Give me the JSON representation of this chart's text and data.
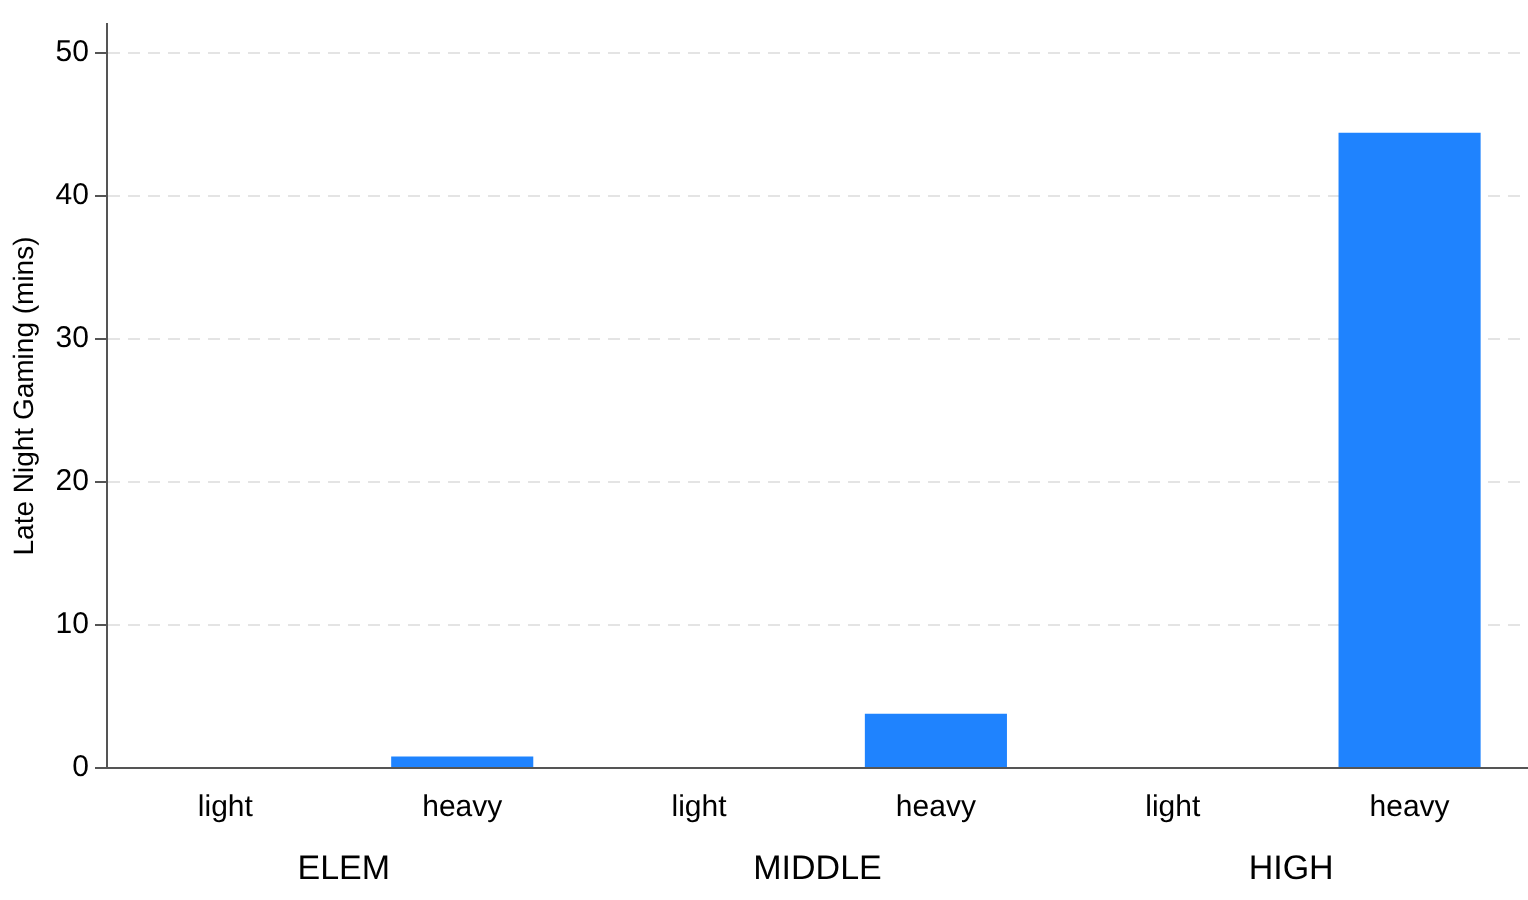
{
  "chart_data": {
    "type": "bar",
    "ylabel": "Late Night Gaming (mins)",
    "categories": [
      "light",
      "heavy",
      "light",
      "heavy",
      "light",
      "heavy"
    ],
    "values": [
      0,
      0.8,
      0,
      3.8,
      0,
      44.4
    ],
    "color": "#1f83fe",
    "ylim": [
      0,
      52
    ],
    "yticks": [
      0,
      10,
      20,
      30,
      40,
      50
    ],
    "grid": "y",
    "annotations": [
      "ELEM",
      "MIDDLE",
      "HIGH"
    ]
  }
}
